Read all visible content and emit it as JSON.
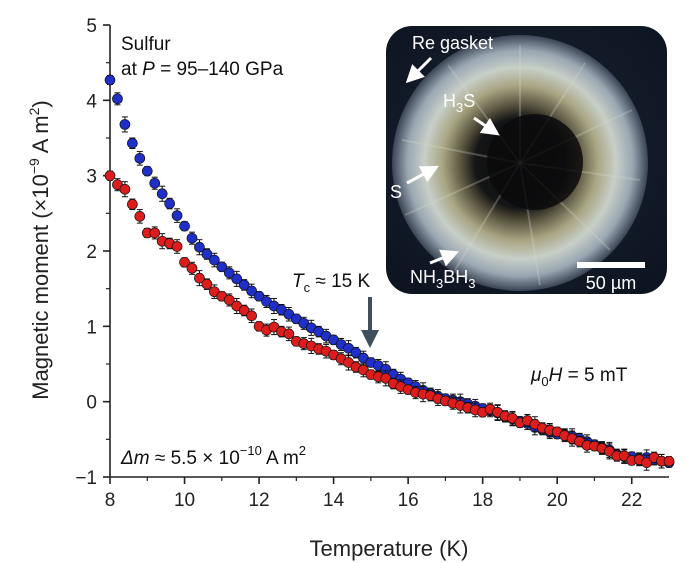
{
  "chart_data": {
    "type": "scatter",
    "xlabel": "Temperature (K)",
    "ylabel_main": "Magnetic moment (×10",
    "ylabel_exp": "−9",
    "ylabel_unit": " A m",
    "ylabel_unit_exp": "2",
    "ylabel_close": ")",
    "xlim": [
      8,
      23
    ],
    "ylim": [
      -1,
      5
    ],
    "xticks": [
      "8",
      "10",
      "12",
      "14",
      "16",
      "18",
      "20",
      "22"
    ],
    "yticks": [
      "−1",
      "0",
      "1",
      "2",
      "3",
      "4",
      "5"
    ],
    "grid": false,
    "colors": {
      "blue": "#1f2fc8",
      "red": "#dd1c1c",
      "arrow": "#3f4f5c"
    },
    "series": [
      {
        "color": "blue",
        "x": [
          8.0,
          8.2,
          8.4,
          8.6,
          8.8,
          9.0,
          9.2,
          9.4,
          9.6,
          9.8,
          10.0,
          10.2,
          10.4,
          10.6,
          10.8,
          11.0,
          11.2,
          11.4,
          11.6,
          11.8,
          12.0,
          12.2,
          12.4,
          12.6,
          12.8,
          13.0,
          13.2,
          13.4,
          13.6,
          13.8,
          14.0,
          14.2,
          14.4,
          14.6,
          14.8,
          15.0,
          15.2,
          15.4,
          15.6,
          15.8,
          16.0,
          16.2,
          16.4,
          16.6,
          16.8,
          17.0,
          17.2,
          17.4,
          17.6,
          17.8,
          18.0,
          18.2,
          18.4,
          18.6,
          18.8,
          19.0,
          19.2,
          19.4,
          19.6,
          19.8,
          20.0,
          20.2,
          20.4,
          20.6,
          20.8,
          21.0,
          21.2,
          21.4,
          21.6,
          21.8,
          22.0,
          22.2,
          22.4,
          22.6,
          22.8,
          23.0
        ],
        "y": [
          4.27,
          4.02,
          3.68,
          3.43,
          3.23,
          3.06,
          2.9,
          2.76,
          2.63,
          2.47,
          2.33,
          2.17,
          2.05,
          1.96,
          1.88,
          1.79,
          1.71,
          1.63,
          1.55,
          1.47,
          1.4,
          1.33,
          1.27,
          1.22,
          1.16,
          1.1,
          1.04,
          0.98,
          0.93,
          0.87,
          0.82,
          0.76,
          0.71,
          0.65,
          0.58,
          0.52,
          0.48,
          0.43,
          0.36,
          0.3,
          0.25,
          0.2,
          0.15,
          0.11,
          0.07,
          0.04,
          0.02,
          0.0,
          -0.03,
          -0.06,
          -0.09,
          -0.12,
          -0.15,
          -0.2,
          -0.23,
          -0.26,
          -0.29,
          -0.34,
          -0.37,
          -0.4,
          -0.43,
          -0.44,
          -0.46,
          -0.49,
          -0.53,
          -0.57,
          -0.61,
          -0.64,
          -0.7,
          -0.73,
          -0.73,
          -0.76,
          -0.74,
          -0.77,
          -0.79,
          -0.81
        ]
      },
      {
        "color": "red",
        "x": [
          8.0,
          8.2,
          8.4,
          8.6,
          8.8,
          9.0,
          9.2,
          9.4,
          9.6,
          9.8,
          10.0,
          10.2,
          10.4,
          10.6,
          10.8,
          11.0,
          11.2,
          11.4,
          11.6,
          11.8,
          12.0,
          12.2,
          12.4,
          12.6,
          12.8,
          13.0,
          13.2,
          13.4,
          13.6,
          13.8,
          14.0,
          14.2,
          14.4,
          14.6,
          14.8,
          15.0,
          15.2,
          15.4,
          15.6,
          15.8,
          16.0,
          16.2,
          16.4,
          16.6,
          16.8,
          17.0,
          17.2,
          17.4,
          17.6,
          17.8,
          18.0,
          18.2,
          18.4,
          18.6,
          18.8,
          19.0,
          19.2,
          19.4,
          19.6,
          19.8,
          20.0,
          20.2,
          20.4,
          20.6,
          20.8,
          21.0,
          21.2,
          21.4,
          21.6,
          21.8,
          22.0,
          22.2,
          22.4,
          22.6,
          22.8,
          23.0
        ],
        "y": [
          3.0,
          2.88,
          2.82,
          2.62,
          2.46,
          2.24,
          2.24,
          2.13,
          2.1,
          2.06,
          1.85,
          1.77,
          1.64,
          1.56,
          1.46,
          1.4,
          1.35,
          1.27,
          1.21,
          1.14,
          1.0,
          0.95,
          0.99,
          0.93,
          0.9,
          0.8,
          0.77,
          0.74,
          0.7,
          0.67,
          0.62,
          0.57,
          0.52,
          0.46,
          0.42,
          0.36,
          0.33,
          0.31,
          0.24,
          0.2,
          0.16,
          0.12,
          0.1,
          0.08,
          0.04,
          0.01,
          -0.02,
          -0.05,
          -0.08,
          -0.11,
          -0.14,
          -0.1,
          -0.14,
          -0.19,
          -0.22,
          -0.28,
          -0.25,
          -0.3,
          -0.35,
          -0.38,
          -0.4,
          -0.45,
          -0.49,
          -0.53,
          -0.58,
          -0.59,
          -0.62,
          -0.66,
          -0.72,
          -0.72,
          -0.78,
          -0.77,
          -0.81,
          -0.74,
          -0.79,
          -0.79
        ]
      }
    ],
    "annotations": {
      "material": "Sulfur",
      "pressure_prefix": "at ",
      "pressure_var": "P",
      "pressure_rest": " = 95–140 GPa",
      "tc_var": "T",
      "tc_sub": "c",
      "tc_rest": " ≈ 15 K",
      "tc_arrow_x": 14.8,
      "field_mu": "μ",
      "field_sub": "0",
      "field_var": "H",
      "field_rest": " = 5 mT",
      "dm_var": "Δm",
      "dm_mid": " ≈ 5.5 × 10",
      "dm_exp": "−10",
      "dm_unit": " A m",
      "dm_unit_exp": "2"
    },
    "inset": {
      "label_gasket": "Re gasket",
      "label_h3s_main": "H",
      "label_h3s_sub": "3",
      "label_h3s_end": "S",
      "label_s": "S",
      "label_nh3bh3_a": "NH",
      "label_nh3bh3_a_sub": "3",
      "label_nh3bh3_b": "BH",
      "label_nh3bh3_b_sub": "3",
      "scale_bar": "50 µm"
    }
  }
}
